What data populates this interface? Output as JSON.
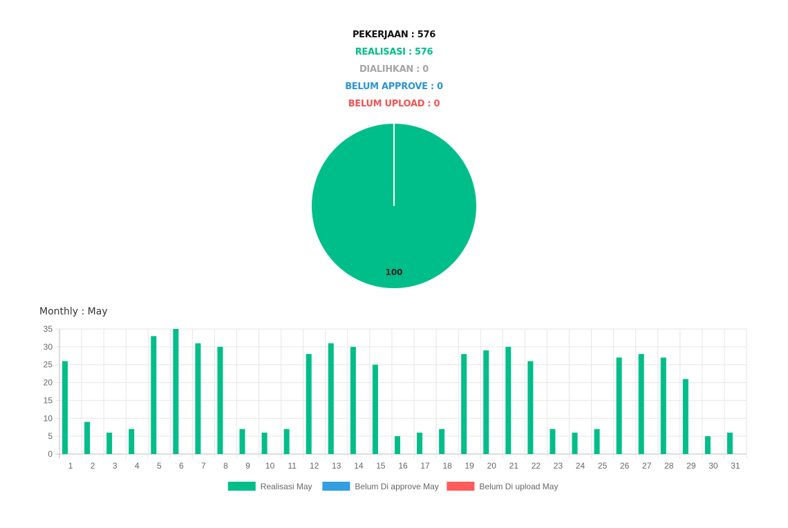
{
  "summary": {
    "pekerjaan": "PEKERJAAN : 576",
    "realisasi": "REALISASI : 576",
    "dialihkan": "DIALIHKAN : 0",
    "belum_approve": "BELUM APPROVE : 0",
    "belum_upload": "BELUM UPLOAD : 0"
  },
  "monthly_title": "Monthly : May",
  "colors": {
    "realisasi": "#00be89",
    "belum_approve": "#339ee0",
    "belum_upload": "#ff5b5b",
    "dialihkan": "#a6a6a6"
  },
  "chart_data": [
    {
      "type": "pie",
      "categories": [
        "Realisasi",
        "Dialihkan",
        "Belum Approve",
        "Belum Upload"
      ],
      "values": [
        100,
        0,
        0,
        0
      ],
      "data_labels": [
        "100"
      ]
    },
    {
      "type": "bar",
      "title": "",
      "xlabel": "",
      "ylabel": "",
      "ylim": [
        0,
        35
      ],
      "yticks": [
        0,
        5,
        10,
        15,
        20,
        25,
        30,
        35
      ],
      "grid": true,
      "legend_position": "bottom",
      "categories": [
        "1",
        "2",
        "3",
        "4",
        "5",
        "6",
        "7",
        "8",
        "9",
        "10",
        "11",
        "12",
        "13",
        "14",
        "15",
        "16",
        "17",
        "18",
        "19",
        "20",
        "21",
        "22",
        "23",
        "24",
        "25",
        "26",
        "27",
        "28",
        "29",
        "30",
        "31"
      ],
      "series": [
        {
          "name": "Realisasi May",
          "values": [
            26,
            9,
            6,
            7,
            33,
            35,
            31,
            30,
            7,
            6,
            7,
            28,
            31,
            30,
            25,
            5,
            6,
            7,
            28,
            29,
            30,
            26,
            7,
            6,
            7,
            27,
            28,
            27,
            21,
            5,
            6
          ]
        },
        {
          "name": "Belum Di approve May",
          "values": [
            0,
            0,
            0,
            0,
            0,
            0,
            0,
            0,
            0,
            0,
            0,
            0,
            0,
            0,
            0,
            0,
            0,
            0,
            0,
            0,
            0,
            0,
            0,
            0,
            0,
            0,
            0,
            0,
            0,
            0,
            0
          ]
        },
        {
          "name": "Belum Di upload May",
          "values": [
            0,
            0,
            0,
            0,
            0,
            0,
            0,
            0,
            0,
            0,
            0,
            0,
            0,
            0,
            0,
            0,
            0,
            0,
            0,
            0,
            0,
            0,
            0,
            0,
            0,
            0,
            0,
            0,
            0,
            0,
            0
          ]
        }
      ]
    }
  ]
}
